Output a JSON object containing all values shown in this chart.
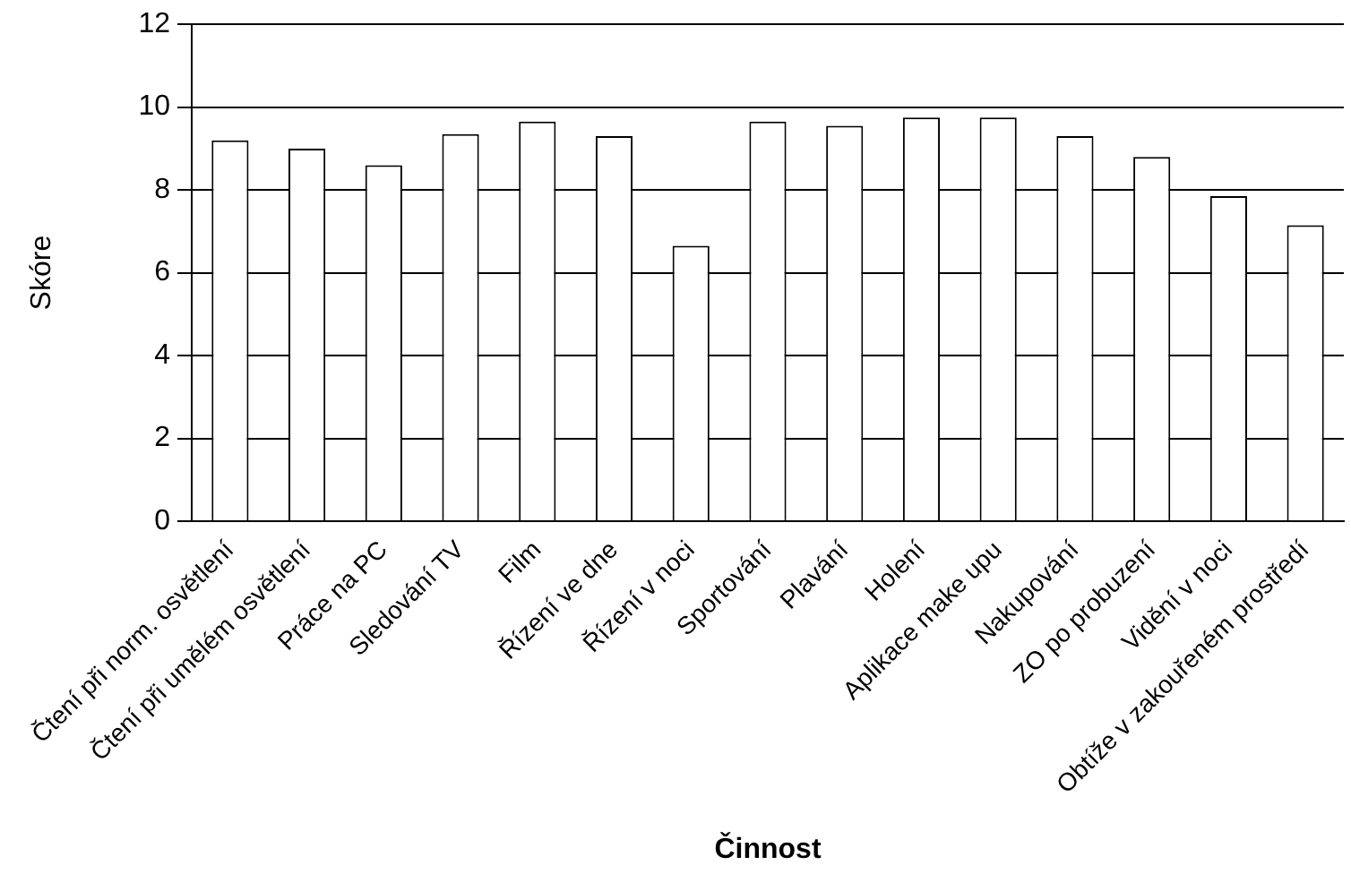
{
  "chart_data": {
    "type": "bar",
    "xlabel": "Činnost",
    "ylabel": "Skóre",
    "categories": [
      "Čtení při norm. osvětlení",
      "Čtení při umělém osvětlení",
      "Práce na PC",
      "Sledování TV",
      "Film",
      "Řízení ve dne",
      "Řízení v noci",
      "Sportování",
      "Plavání",
      "Holení",
      "Aplikace make upu",
      "Nakupování",
      "ZO po probuzení",
      "Vidění v noci",
      "Obtíže v zakouřeném prostředí"
    ],
    "values": [
      9.2,
      9.0,
      8.6,
      9.35,
      9.65,
      9.3,
      6.65,
      9.65,
      9.55,
      9.75,
      9.75,
      9.3,
      8.8,
      7.85,
      7.15
    ],
    "color": "#ffffff",
    "ylim": [
      0,
      12
    ],
    "yticks": [
      0,
      2,
      4,
      6,
      8,
      10,
      12
    ],
    "grid": "y",
    "legend": false
  }
}
